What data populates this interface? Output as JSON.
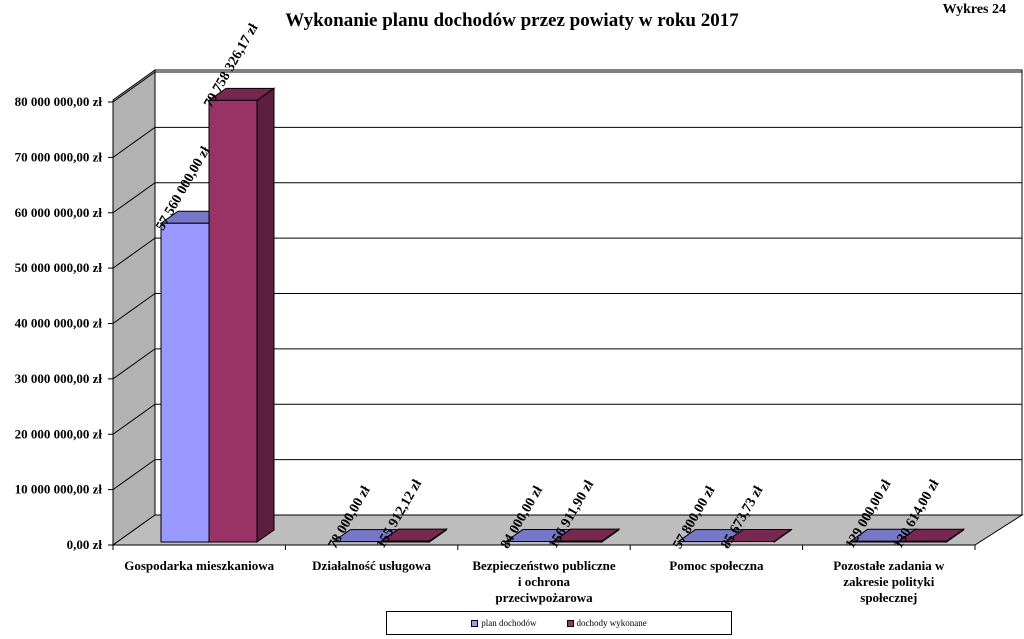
{
  "figure_label": "Wykres 24",
  "chart_data": {
    "type": "bar",
    "title": "Wykonanie planu dochodów przez powiaty w roku 2017",
    "categories": [
      [
        "Gospodarka mieszkaniowa"
      ],
      [
        "Działalność usługowa"
      ],
      [
        "Bezpieczeństwo publiczne",
        "i ochrona",
        "przeciwpożarowa"
      ],
      [
        "Pomoc społeczna"
      ],
      [
        "Pozostałe zadania w",
        "zakresie polityki",
        "społecznej"
      ]
    ],
    "series": [
      {
        "name": "plan dochodów",
        "color": "#9999ff",
        "values": [
          57560000.0,
          78000.0,
          84000.0,
          57800.0,
          129000.0
        ],
        "labels": [
          "57 560 000,00 zł",
          "78 000,00 zł",
          "84 000,00 zł",
          "57 800,00 zł",
          "129 000,00 zł"
        ]
      },
      {
        "name": "dochody wykonane",
        "color": "#993366",
        "values": [
          79758326.17,
          155912.12,
          156911.9,
          85673.73,
          130614.0
        ],
        "labels": [
          "79 758 326,17 zł",
          "155 912,12 zł",
          "156 911,90 zł",
          "85 673,73 zł",
          "130 614,00 zł"
        ]
      }
    ],
    "y_ticks": [
      "0,00 zł",
      "10 000 000,00 zł",
      "20 000 000,00 zł",
      "30 000 000,00 zł",
      "40 000 000,00 zł",
      "50 000 000,00 zł",
      "60 000 000,00 zł",
      "70 000 000,00 zł",
      "80 000 000,00 zł"
    ],
    "ylim": [
      0,
      80000000
    ],
    "grid": true,
    "legend_position": "bottom"
  }
}
